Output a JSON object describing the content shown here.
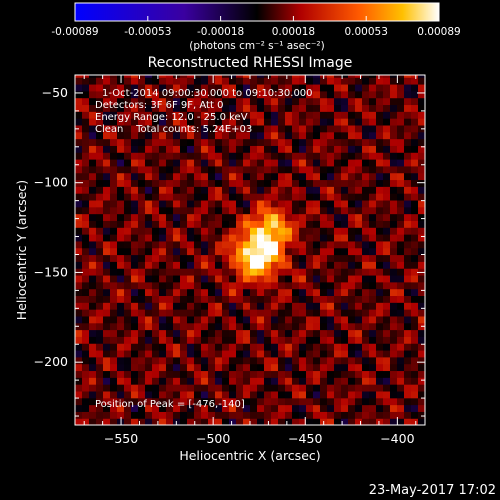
{
  "chart_data": {
    "type": "heatmap",
    "title": "Reconstructed RHESSI Image",
    "xlabel": "Heliocentric X (arcsec)",
    "ylabel": "Heliocentric Y (arcsec)",
    "xlim": [
      -575,
      -385
    ],
    "ylim": [
      -235,
      -40
    ],
    "x_ticks": [
      -550,
      -500,
      -450,
      -400
    ],
    "y_ticks": [
      -50,
      -100,
      -150,
      -200
    ],
    "colorbar": {
      "ticks": [
        "-0.00089",
        "-0.00053",
        "-0.00018",
        "0.00018",
        "0.00053",
        "0.00089"
      ],
      "label": "(photons cm⁻² s⁻¹ asec⁻²)",
      "min": -0.00089,
      "max": 0.00089
    },
    "annotations": [
      "1-Oct-2014 09:00:30.000 to 09:10:30.000",
      "Detectors: 3F 6F 9F, Att 0",
      "Energy Range: 12.0 - 25.0 keV",
      "Clean    Total counts: 5.24E+03",
      "Position of Peak = [-476,-140]"
    ],
    "peak": {
      "x": -476,
      "y": -140
    },
    "footer_date": "23-May-2017 17:02"
  }
}
